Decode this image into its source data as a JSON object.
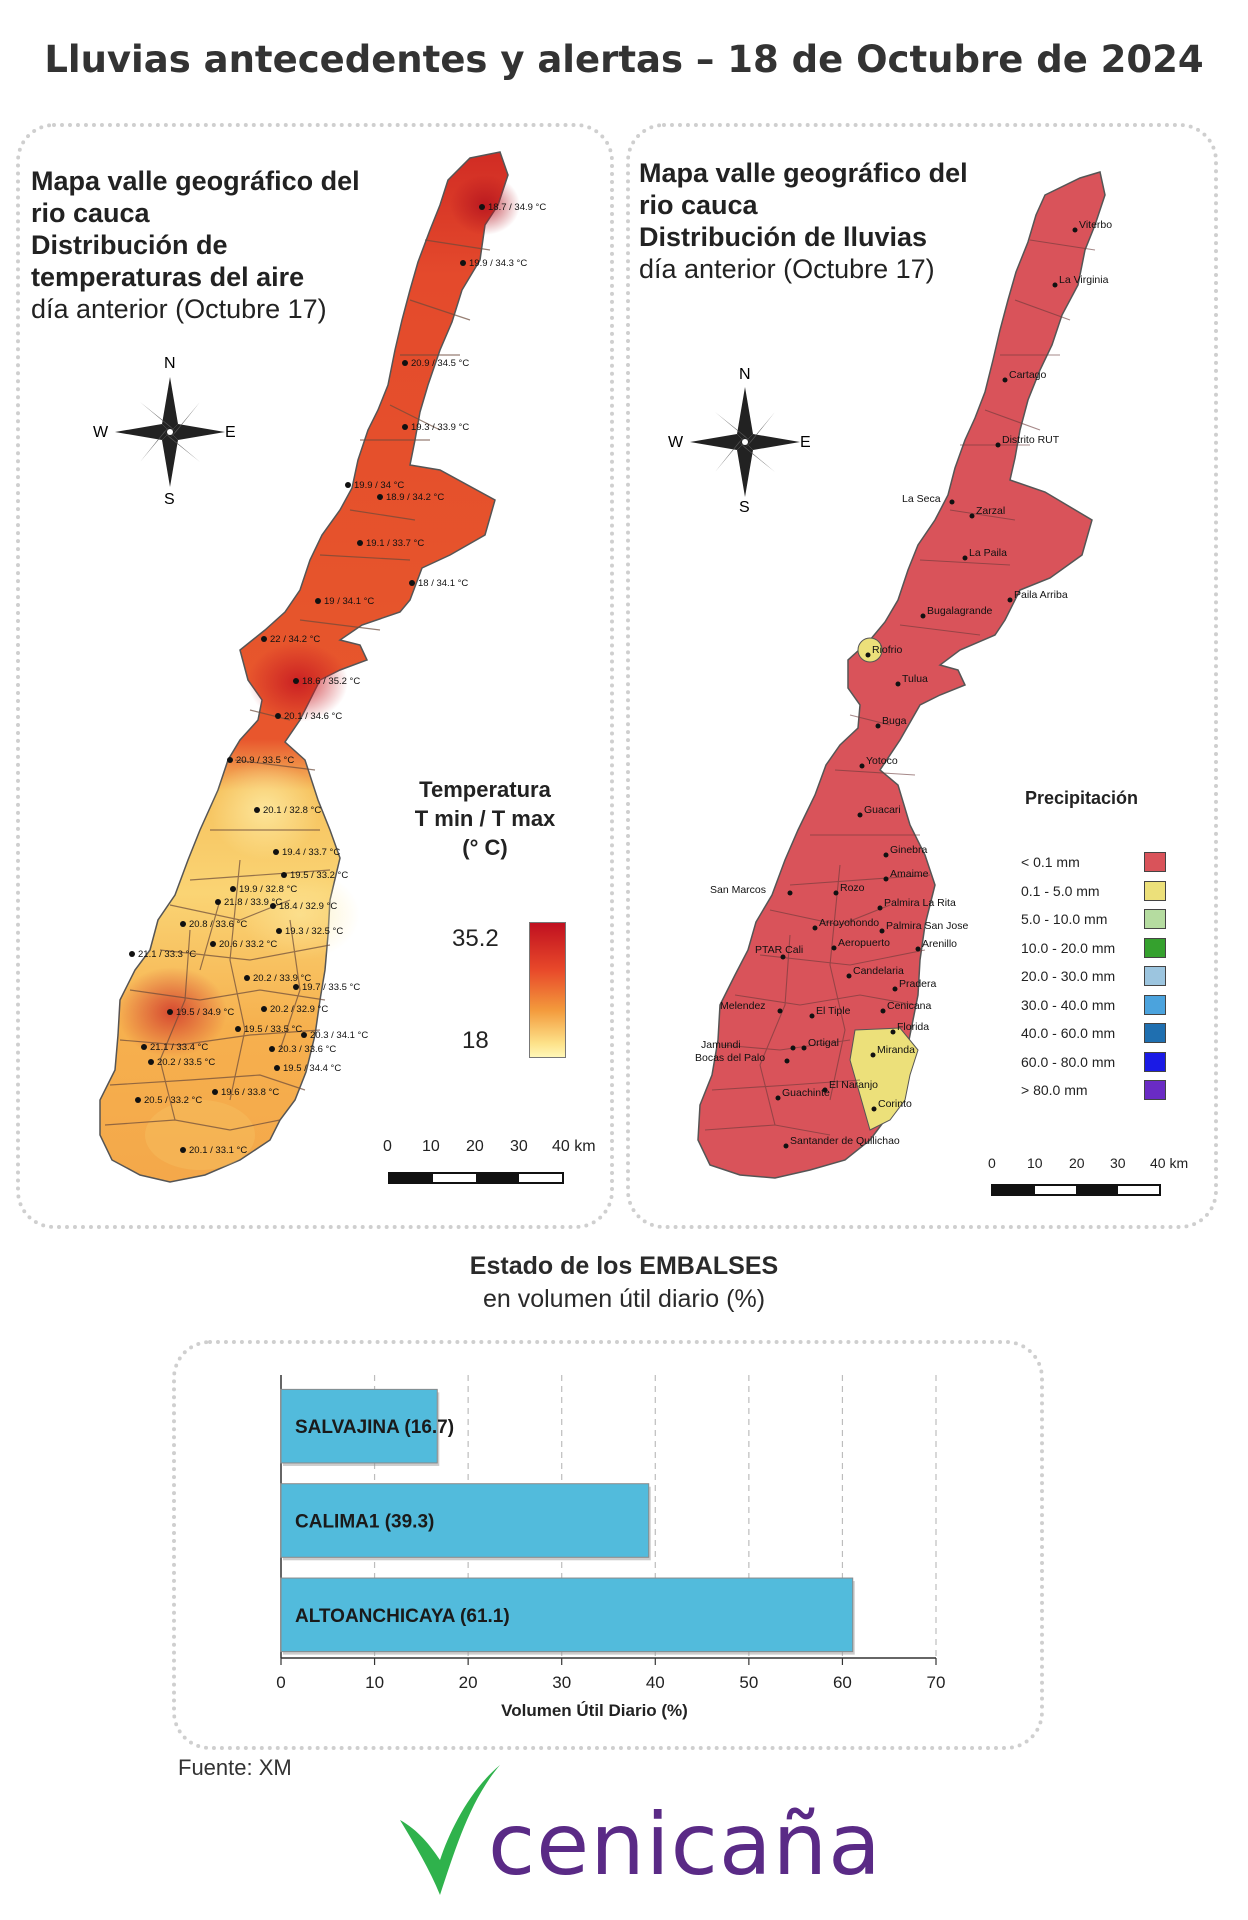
{
  "title": "Lluvias antecedentes y alertas – 18 de Octubre de 2024",
  "temp_map": {
    "title_lines_bold": [
      "Mapa valle geográfico del",
      "rio cauca",
      "Distribución de",
      "temperaturas del aire"
    ],
    "subtitle": "día anterior (Octubre 17)",
    "compass": {
      "n": "N",
      "s": "S",
      "e": "E",
      "w": "W"
    },
    "legend_title_lines": [
      "Temperatura",
      "T min / T max",
      "(° C)"
    ],
    "legend_max": "35.2",
    "legend_min": "18",
    "scale_labels": [
      "0",
      "10",
      "20",
      "30",
      "40 km"
    ],
    "stations": [
      "18.7 / 34.9 °C",
      "19.9 / 34.3 °C",
      "20.9 / 34.5 °C",
      "19.3 / 33.9 °C",
      "19.9 / 34 °C",
      "18.9 / 34.2 °C",
      "19.1 / 33.7 °C",
      "18 / 34.1 °C",
      "19 / 34.1 °C",
      "22 / 34.2 °C",
      "18.6 / 35.2 °C",
      "20.1 / 34.6 °C",
      "20.9 / 33.5 °C",
      "20.1 / 32.8 °C",
      "19.4 / 33.7 °C",
      "19.5 / 33.2 °C",
      "19.9 / 32.8 °C",
      "21.8 / 33.9 °C",
      "18.4 / 32.9 °C",
      "20.8 / 33.6 °C",
      "19.3 / 32.5 °C",
      "20.6 / 33.2 °C",
      "21.1 / 33.3 °C",
      "20.2 / 33.9 °C",
      "19.7 / 33.5 °C",
      "19.5 / 34.9 °C",
      "20.2 / 32.9 °C",
      "19.5 / 33.5 °C",
      "20.3 / 34.1 °C",
      "21.1 / 33.4 °C",
      "20.3 / 33.6 °C",
      "20.2 / 33.5 °C",
      "19.5 / 34.4 °C",
      "19.6 / 33.8 °C",
      "20.5 / 33.2 °C",
      "20.1 / 33.1 °C"
    ]
  },
  "rain_map": {
    "title_lines_bold_first": [
      "Mapa valle geográfico del",
      "rio cauca"
    ],
    "title_bold": "Distribución de lluvias",
    "subtitle": "día anterior (Octubre 17)",
    "compass": {
      "n": "N",
      "s": "S",
      "e": "E",
      "w": "W"
    },
    "legend_title": "Precipitación",
    "legend": [
      {
        "label": "< 0.1 mm",
        "color": "#d9535a"
      },
      {
        "label": "0.1 - 5.0 mm",
        "color": "#ece07a"
      },
      {
        "label": "5.0 - 10.0 mm",
        "color": "#b5dca0"
      },
      {
        "label": "10.0 - 20.0 mm",
        "color": "#35a12e"
      },
      {
        "label": "20.0 - 30.0 mm",
        "color": "#9cc5df"
      },
      {
        "label": "30.0 - 40.0 mm",
        "color": "#4ba3dd"
      },
      {
        "label": "40.0 - 60.0 mm",
        "color": "#1f6fb0"
      },
      {
        "label": "60.0 - 80.0 mm",
        "color": "#1a1ae6"
      },
      {
        "label": "> 80.0 mm",
        "color": "#6a2bc4"
      }
    ],
    "scale_labels": [
      "0",
      "10",
      "20",
      "30",
      "40 km"
    ],
    "stations": [
      "Viterbo",
      "La Virginia",
      "Cartago",
      "Distrito RUT",
      "La Seca",
      "Zarzal",
      "La Paila",
      "Paila Arriba",
      "Bugalagrande",
      "Riofrio",
      "Tulua",
      "Buga",
      "Yotoco",
      "Guacari",
      "Ginebra",
      "Amaime",
      "San Marcos",
      "Rozo",
      "Palmira La Rita",
      "Arroyohondo",
      "Palmira San Jose",
      "Aeropuerto",
      "Arenillo",
      "PTAR Cali",
      "Candelaria",
      "Pradera",
      "Melendez",
      "Cenicana",
      "El Tiple",
      "Florida",
      "Jamundi",
      "Bocas del Palo",
      "Ortigal",
      "Miranda",
      "El Naranjo",
      "Guachinte",
      "Corinto",
      "Santander de Quilichao"
    ]
  },
  "reservoirs": {
    "title_bold": "Estado de los EMBALSES",
    "subtitle": "en volumen útil diario (%)",
    "source": "Fuente: XM",
    "bar_color": "#52bbdc"
  },
  "chart_data": {
    "type": "bar",
    "orientation": "horizontal",
    "categories": [
      "SALVAJINA",
      "CALIMA1",
      "ALTOANCHICAYA"
    ],
    "values": [
      16.7,
      39.3,
      61.1
    ],
    "bar_labels": [
      "SALVAJINA (16.7)",
      "CALIMA1 (39.3)",
      "ALTOANCHICAYA (61.1)"
    ],
    "xlabel": "Volumen Útil Diario (%)",
    "ylabel": "",
    "xlim": [
      0,
      70
    ],
    "xticks": [
      "0",
      "10",
      "20",
      "30",
      "40",
      "50",
      "60",
      "70"
    ],
    "grid": "vertical dashed"
  },
  "logo": {
    "text": "cenicaña",
    "color": "#5a2a86",
    "mark_color": "#2fb24c"
  }
}
